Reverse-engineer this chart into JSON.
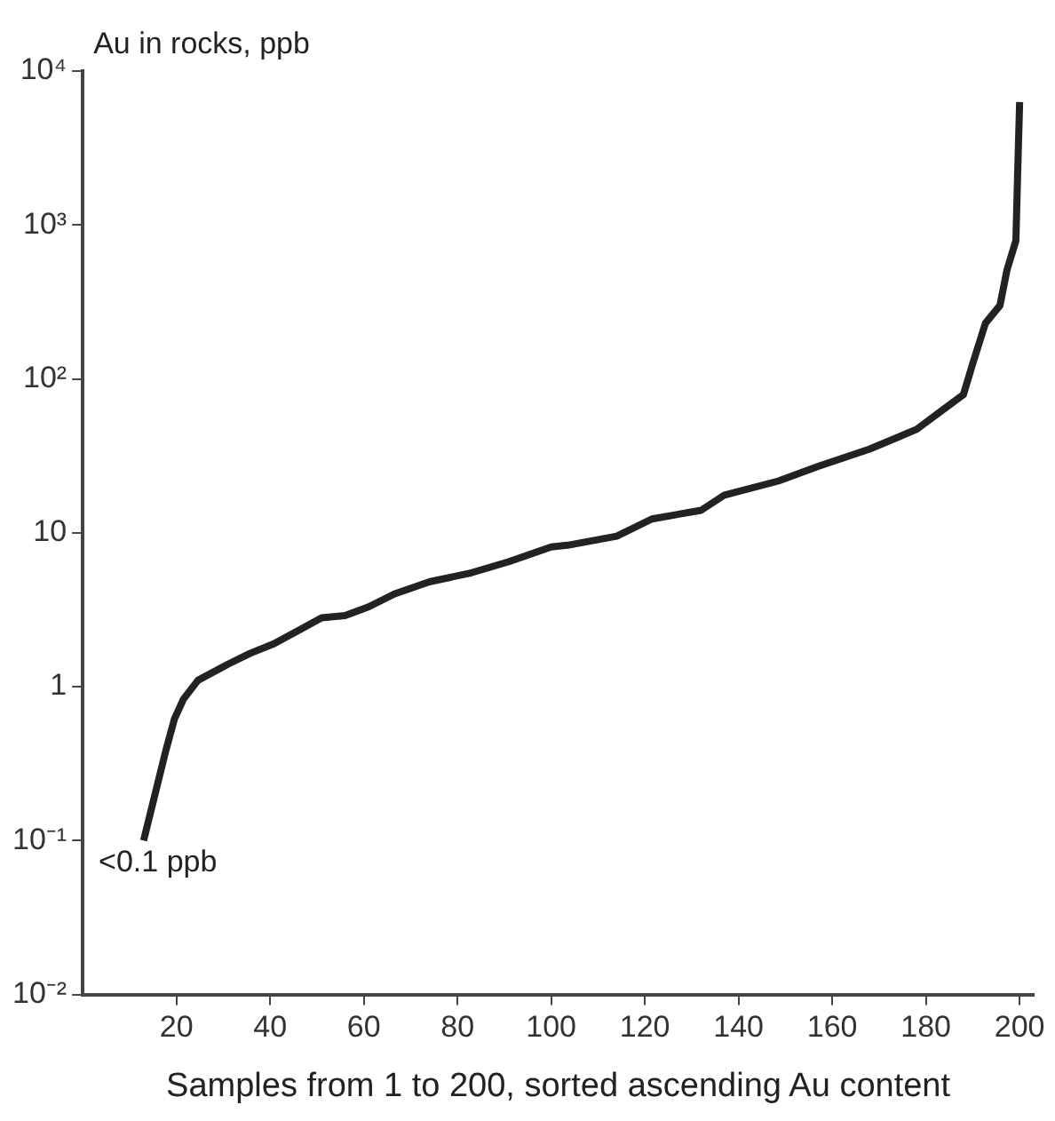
{
  "chart_data": {
    "type": "line",
    "xlabel": "Samples from 1 to 200, sorted ascending Au content",
    "ylabel": "Au in rocks, ppb",
    "log": "y",
    "grid": false,
    "legend": false,
    "marker": "none",
    "line_style": "solid",
    "xlim": [
      0,
      203
    ],
    "xticks": [
      20,
      40,
      60,
      80,
      100,
      120,
      140,
      160,
      180,
      200
    ],
    "ylim": [
      0.01,
      10000
    ],
    "yticks": [
      {
        "value": 0.01,
        "label": "10⁻²"
      },
      {
        "value": 0.1,
        "label": "10⁻¹"
      },
      1,
      10,
      {
        "value": 100,
        "label": "10²"
      },
      {
        "value": 1000,
        "label": "10³"
      },
      {
        "value": 10000,
        "label": "10⁴"
      }
    ],
    "annotations": [
      {
        "text": "<0.1 ppb",
        "x": 13,
        "y": 0.1
      }
    ],
    "series": [
      {
        "color": "#222222",
        "x": [
          13,
          17.7,
          19.6,
          21.5,
          24.6,
          31,
          35.8,
          40.8,
          45.8,
          51,
          56,
          61,
          66.5,
          74,
          83,
          91,
          100,
          103.5,
          114,
          121.5,
          132,
          137,
          148.5,
          157,
          168,
          178,
          183,
          188,
          190,
          192.7,
          195.8,
          197.3,
          199.2,
          199.6,
          200
        ],
        "values": [
          0.1,
          0.38,
          0.62,
          0.83,
          1.1,
          1.4,
          1.65,
          1.9,
          2.3,
          2.8,
          2.9,
          3.3,
          4,
          4.8,
          5.5,
          6.5,
          8.1,
          8.3,
          9.5,
          12.3,
          14,
          17.6,
          21.7,
          27,
          35,
          47,
          61,
          79,
          126,
          230,
          300,
          510,
          790,
          2300,
          6300
        ]
      }
    ]
  }
}
